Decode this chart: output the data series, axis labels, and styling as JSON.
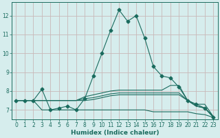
{
  "xlabel": "Humidex (Indice chaleur)",
  "ylabel": "",
  "bg_color": "#d6eded",
  "plot_bg_color": "#d6eded",
  "grid_color": "#c8b8b8",
  "line_color": "#1a6b5e",
  "xlim": [
    -0.5,
    23.5
  ],
  "ylim": [
    6.5,
    12.7
  ],
  "yticks": [
    7,
    8,
    9,
    10,
    11,
    12
  ],
  "xticks": [
    0,
    1,
    2,
    3,
    4,
    5,
    6,
    7,
    8,
    9,
    10,
    11,
    12,
    13,
    14,
    15,
    16,
    17,
    18,
    19,
    20,
    21,
    22,
    23
  ],
  "series": [
    {
      "x": [
        0,
        1,
        2,
        3,
        4,
        5,
        6,
        7,
        8,
        9,
        10,
        11,
        12,
        13,
        14,
        15,
        16,
        17,
        18,
        19,
        20,
        21,
        22,
        23
      ],
      "y": [
        7.5,
        7.5,
        7.5,
        8.1,
        7.0,
        7.1,
        7.2,
        7.0,
        7.6,
        8.8,
        10.0,
        11.2,
        12.3,
        11.7,
        12.0,
        10.8,
        9.3,
        8.8,
        8.7,
        8.2,
        7.5,
        7.3,
        7.1,
        6.6
      ],
      "marker": "D",
      "markersize": 2.5
    },
    {
      "x": [
        0,
        1,
        2,
        3,
        4,
        5,
        6,
        7,
        8,
        9,
        10,
        11,
        12,
        13,
        14,
        15,
        16,
        17,
        18,
        19,
        20,
        21,
        22,
        23
      ],
      "y": [
        7.5,
        7.5,
        7.5,
        7.5,
        7.5,
        7.5,
        7.5,
        7.5,
        7.7,
        7.8,
        7.9,
        8.0,
        8.05,
        8.05,
        8.05,
        8.05,
        8.05,
        8.05,
        8.3,
        8.3,
        7.5,
        7.3,
        7.3,
        6.65
      ],
      "marker": null,
      "markersize": 0
    },
    {
      "x": [
        0,
        1,
        2,
        3,
        4,
        5,
        6,
        7,
        8,
        9,
        10,
        11,
        12,
        13,
        14,
        15,
        16,
        17,
        18,
        19,
        20,
        21,
        22,
        23
      ],
      "y": [
        7.5,
        7.5,
        7.5,
        7.5,
        7.5,
        7.5,
        7.5,
        7.5,
        7.6,
        7.65,
        7.75,
        7.85,
        7.9,
        7.9,
        7.9,
        7.9,
        7.9,
        7.9,
        7.9,
        7.9,
        7.5,
        7.2,
        7.1,
        6.65
      ],
      "marker": null,
      "markersize": 0
    },
    {
      "x": [
        0,
        1,
        2,
        3,
        4,
        5,
        6,
        7,
        8,
        9,
        10,
        11,
        12,
        13,
        14,
        15,
        16,
        17,
        18,
        19,
        20,
        21,
        22,
        23
      ],
      "y": [
        7.5,
        7.5,
        7.5,
        7.0,
        7.0,
        7.0,
        7.0,
        7.0,
        7.0,
        7.0,
        7.0,
        7.0,
        7.0,
        7.0,
        7.0,
        7.0,
        6.9,
        6.9,
        6.9,
        6.9,
        6.9,
        6.8,
        6.75,
        6.6
      ],
      "marker": null,
      "markersize": 0
    },
    {
      "x": [
        0,
        1,
        2,
        3,
        4,
        5,
        6,
        7,
        8,
        9,
        10,
        11,
        12,
        13,
        14,
        15,
        16,
        17,
        18,
        19,
        20,
        21,
        22,
        23
      ],
      "y": [
        7.5,
        7.5,
        7.5,
        7.5,
        7.5,
        7.5,
        7.5,
        7.5,
        7.5,
        7.55,
        7.65,
        7.75,
        7.8,
        7.8,
        7.8,
        7.8,
        7.8,
        7.8,
        7.8,
        7.8,
        7.5,
        7.2,
        7.1,
        6.65
      ],
      "marker": null,
      "markersize": 0
    }
  ]
}
